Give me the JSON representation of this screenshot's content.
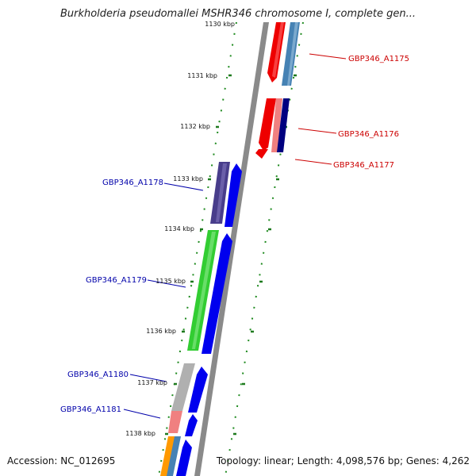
{
  "title": "Burkholderia pseudomallei MSHR346 chromosome I, complete gen...",
  "accession": "Accession: NC_012695",
  "topology": "Topology: linear; Length: 4,098,576 bp; Genes: 4,262",
  "ticks": [
    "1130 kbp",
    "1131 kbp",
    "1132 kbp",
    "1133 kbp",
    "1134 kbp",
    "1135 kbp",
    "1136 kbp",
    "1137 kbp",
    "1138 kbp"
  ],
  "genes_right": [
    "GBP346_A1175",
    "GBP346_A1176",
    "GBP346_A1177"
  ],
  "genes_left": [
    "GBP346_A1178",
    "GBP346_A1179",
    "GBP346_A1180",
    "GBP346_A1181"
  ],
  "colors": {
    "red_label": "#cc0000",
    "blue_label": "#0000aa",
    "tick_green": "#1e7a1e",
    "backbone": "#8a8a8a"
  }
}
